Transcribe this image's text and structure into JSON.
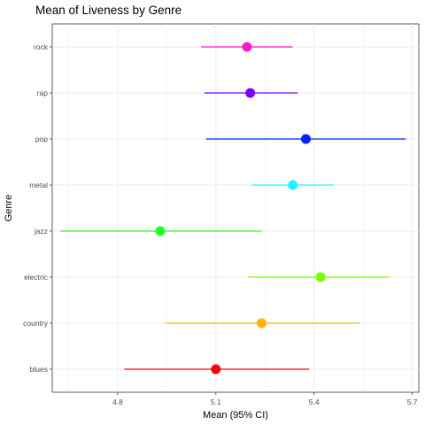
{
  "chart_data": {
    "type": "scatter",
    "subtype": "point-range (mean with 95% CI error bars)",
    "title": "Mean of Liveness by Genre",
    "xlabel": "Mean (95% CI)",
    "ylabel": "Genre",
    "xlim": [
      4.6,
      5.72
    ],
    "x_ticks": [
      4.8,
      5.1,
      5.4,
      5.7
    ],
    "x_tick_labels": [
      "4.8",
      "5.1",
      "5.4",
      "5.7"
    ],
    "grid": true,
    "categories": [
      "blues",
      "country",
      "electric",
      "jazz",
      "metal",
      "pop",
      "rap",
      "rock"
    ],
    "points": [
      {
        "category": "blues",
        "mean": 5.1,
        "lower": 4.82,
        "upper": 5.385,
        "color": "#F8000D"
      },
      {
        "category": "country",
        "mean": 5.24,
        "lower": 4.945,
        "upper": 5.54,
        "color": "#FFB300"
      },
      {
        "category": "electric",
        "mean": 5.42,
        "lower": 5.2,
        "upper": 5.63,
        "color": "#7CFF00"
      },
      {
        "category": "jazz",
        "mean": 4.93,
        "lower": 4.625,
        "upper": 5.24,
        "color": "#24FF24"
      },
      {
        "category": "metal",
        "mean": 5.335,
        "lower": 5.21,
        "upper": 5.46,
        "color": "#1FF5FF"
      },
      {
        "category": "pop",
        "mean": 5.375,
        "lower": 5.07,
        "upper": 5.68,
        "color": "#0022FF"
      },
      {
        "category": "rap",
        "mean": 5.205,
        "lower": 5.065,
        "upper": 5.35,
        "color": "#8000FF"
      },
      {
        "category": "rock",
        "mean": 5.195,
        "lower": 5.055,
        "upper": 5.335,
        "color": "#FF19C5"
      }
    ]
  }
}
